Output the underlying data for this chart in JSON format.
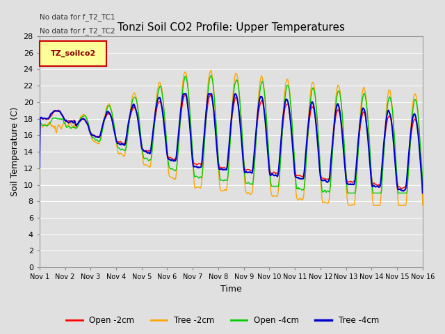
{
  "title": "Tonzi Soil CO2 Profile: Upper Temperatures",
  "xlabel": "Time",
  "ylabel": "Soil Temperature (C)",
  "ylim": [
    0,
    28
  ],
  "yticks": [
    0,
    2,
    4,
    6,
    8,
    10,
    12,
    14,
    16,
    18,
    20,
    22,
    24,
    26,
    28
  ],
  "background_color": "#e0e0e0",
  "plot_bg_color": "#e0e0e0",
  "grid_color": "#ffffff",
  "note1": "No data for f_T2_TC1",
  "note2": "No data for f_T2_TC2",
  "legend_title": "TZ_soilco2",
  "legend_title_color": "#8b0000",
  "legend_bg": "#ffff99",
  "series": [
    {
      "label": "Open -2cm",
      "color": "#ff0000",
      "lw": 1.0
    },
    {
      "label": "Tree -2cm",
      "color": "#ffa500",
      "lw": 1.0
    },
    {
      "label": "Open -4cm",
      "color": "#00cc00",
      "lw": 1.0
    },
    {
      "label": "Tree -4cm",
      "color": "#0000cc",
      "lw": 1.5
    }
  ],
  "n_days": 15,
  "pts_per_day": 48
}
